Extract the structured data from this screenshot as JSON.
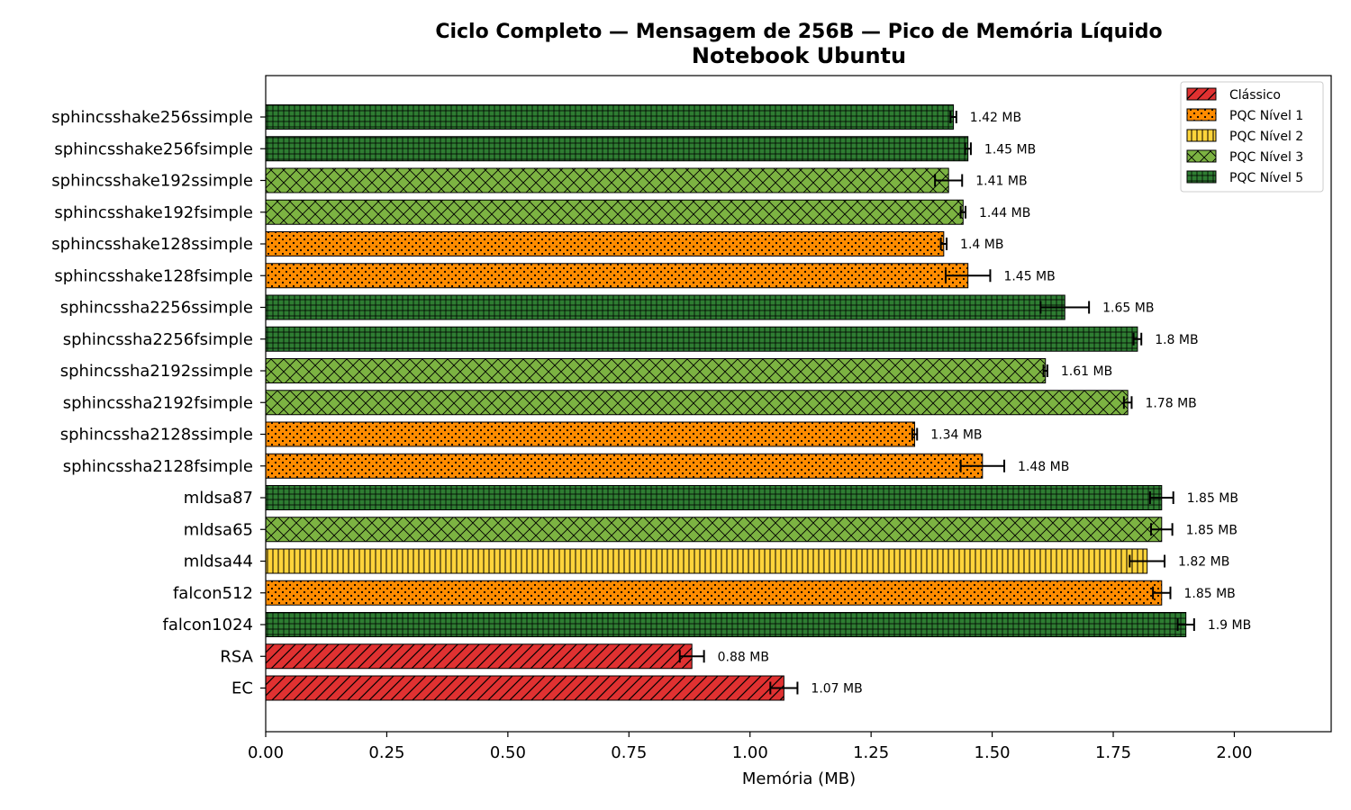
{
  "chart_data": {
    "type": "bar",
    "orientation": "horizontal",
    "title": "Ciclo Completo — Mensagem de 256B — Pico de Memória Líquido",
    "subtitle": "Notebook Ubuntu",
    "xlabel": "Memória (MB)",
    "ylabel": "",
    "xlim": [
      0,
      2.2
    ],
    "xticks": [
      "0.00",
      "0.25",
      "0.50",
      "0.75",
      "1.00",
      "1.25",
      "1.50",
      "1.75",
      "2.00"
    ],
    "grid": false,
    "legend_position": "top-right",
    "value_suffix": " MB",
    "legend": [
      {
        "key": "classico",
        "label": "Clássico",
        "color": "#e03131",
        "pattern": "diagonal"
      },
      {
        "key": "n1",
        "label": "PQC Nível 1",
        "color": "#ff8c00",
        "pattern": "dots"
      },
      {
        "key": "n2",
        "label": "PQC Nível 2",
        "color": "#ffd43b",
        "pattern": "vertical"
      },
      {
        "key": "n3",
        "label": "PQC Nível 3",
        "color": "#7cb342",
        "pattern": "crosshatch"
      },
      {
        "key": "n5",
        "label": "PQC Nível 5",
        "color": "#2e7d32",
        "pattern": "grid"
      }
    ],
    "bars": [
      {
        "name": "sphincsshake256ssimple",
        "value": 1.42,
        "error": 0.006,
        "label": "1.42 MB",
        "group": "n5"
      },
      {
        "name": "sphincsshake256fsimple",
        "value": 1.45,
        "error": 0.006,
        "label": "1.45 MB",
        "group": "n5"
      },
      {
        "name": "sphincsshake192ssimple",
        "value": 1.41,
        "error": 0.028,
        "label": "1.41 MB",
        "group": "n3"
      },
      {
        "name": "sphincsshake192fsimple",
        "value": 1.44,
        "error": 0.005,
        "label": "1.44 MB",
        "group": "n3"
      },
      {
        "name": "sphincsshake128ssimple",
        "value": 1.4,
        "error": 0.006,
        "label": "1.4 MB",
        "group": "n1"
      },
      {
        "name": "sphincsshake128fsimple",
        "value": 1.45,
        "error": 0.046,
        "label": "1.45 MB",
        "group": "n1"
      },
      {
        "name": "sphincssha2256ssimple",
        "value": 1.65,
        "error": 0.05,
        "label": "1.65 MB",
        "group": "n5"
      },
      {
        "name": "sphincssha2256fsimple",
        "value": 1.8,
        "error": 0.008,
        "label": "1.8 MB",
        "group": "n5"
      },
      {
        "name": "sphincssha2192ssimple",
        "value": 1.61,
        "error": 0.004,
        "label": "1.61 MB",
        "group": "n3"
      },
      {
        "name": "sphincssha2192fsimple",
        "value": 1.78,
        "error": 0.008,
        "label": "1.78 MB",
        "group": "n3"
      },
      {
        "name": "sphincssha2128ssimple",
        "value": 1.34,
        "error": 0.005,
        "label": "1.34 MB",
        "group": "n1"
      },
      {
        "name": "sphincssha2128fsimple",
        "value": 1.48,
        "error": 0.045,
        "label": "1.48 MB",
        "group": "n1"
      },
      {
        "name": "mldsa87",
        "value": 1.85,
        "error": 0.024,
        "label": "1.85 MB",
        "group": "n5"
      },
      {
        "name": "mldsa65",
        "value": 1.85,
        "error": 0.022,
        "label": "1.85 MB",
        "group": "n3"
      },
      {
        "name": "mldsa44",
        "value": 1.82,
        "error": 0.036,
        "label": "1.82 MB",
        "group": "n2"
      },
      {
        "name": "falcon512",
        "value": 1.85,
        "error": 0.018,
        "label": "1.85 MB",
        "group": "n1"
      },
      {
        "name": "falcon1024",
        "value": 1.9,
        "error": 0.017,
        "label": "1.9 MB",
        "group": "n5"
      },
      {
        "name": "RSA",
        "value": 0.88,
        "error": 0.025,
        "label": "0.88 MB",
        "group": "classico"
      },
      {
        "name": "EC",
        "value": 1.07,
        "error": 0.028,
        "label": "1.07 MB",
        "group": "classico"
      }
    ]
  }
}
